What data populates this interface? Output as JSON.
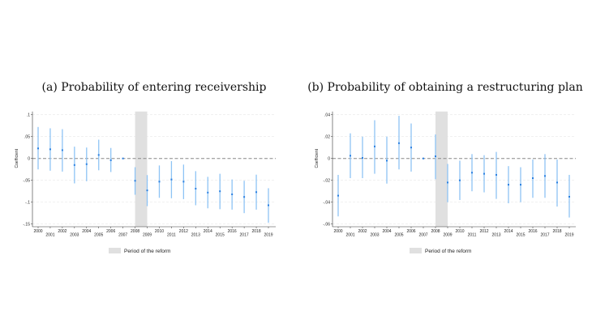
{
  "chart_data": [
    {
      "type": "scatter",
      "subtype": "coefficient-plot-with-confidence-intervals",
      "title": "(a) Probability of entering receivership",
      "ylabel": "Coefficient",
      "xlabel": "",
      "ylim": [
        -0.15,
        0.1
      ],
      "yticks": [
        0.1,
        0.05,
        0,
        -0.05,
        -0.1,
        -0.15
      ],
      "ytick_labels": [
        ".1",
        ".05",
        "0",
        "-.05",
        "-.1",
        "-.15"
      ],
      "grid": true,
      "reference_line": 0,
      "shaded_region": {
        "from": "2008",
        "to": "2009",
        "label": "Period of the reform"
      },
      "legend": {
        "position": "bottom",
        "entries": [
          "Period of the reform"
        ]
      },
      "x": [
        "2000",
        "2001",
        "2002",
        "2003",
        "2004",
        "2005",
        "2006",
        "2007",
        "2008",
        "2009",
        "2010",
        "2011",
        "2012",
        "2013",
        "2014",
        "2015",
        "2016",
        "2017",
        "2018",
        "2019"
      ],
      "coef": [
        0.023,
        0.021,
        0.019,
        -0.015,
        -0.013,
        0.008,
        -0.004,
        0,
        -0.051,
        -0.073,
        -0.053,
        -0.048,
        -0.053,
        -0.069,
        -0.078,
        -0.075,
        -0.082,
        -0.088,
        -0.077,
        -0.107
      ],
      "ci_low": [
        -0.025,
        -0.028,
        -0.03,
        -0.057,
        -0.052,
        -0.027,
        -0.031,
        0,
        -0.083,
        -0.109,
        -0.09,
        -0.091,
        -0.093,
        -0.107,
        -0.114,
        -0.116,
        -0.117,
        -0.125,
        -0.117,
        -0.147
      ],
      "ci_high": [
        0.072,
        0.069,
        0.067,
        0.027,
        0.025,
        0.043,
        0.024,
        0,
        -0.02,
        -0.038,
        -0.016,
        -0.006,
        -0.014,
        -0.029,
        -0.042,
        -0.035,
        -0.048,
        -0.051,
        -0.037,
        -0.068
      ]
    },
    {
      "type": "scatter",
      "subtype": "coefficient-plot-with-confidence-intervals",
      "title": "(b) Probability of obtaining a restructuring plan",
      "ylabel": "Coefficient",
      "xlabel": "",
      "ylim": [
        -0.06,
        0.04
      ],
      "yticks": [
        0.04,
        0.02,
        0,
        -0.02,
        -0.04,
        -0.06
      ],
      "ytick_labels": [
        ".04",
        ".02",
        "0",
        "-.02",
        "-.04",
        "-.06"
      ],
      "grid": true,
      "reference_line": 0,
      "shaded_region": {
        "from": "2008",
        "to": "2009",
        "label": "Period of the reform"
      },
      "legend": {
        "position": "bottom",
        "entries": [
          "Period of the reform"
        ]
      },
      "x": [
        "2000",
        "2001",
        "2002",
        "2003",
        "2004",
        "2005",
        "2006",
        "2007",
        "2008",
        "2009",
        "2010",
        "2011",
        "2012",
        "2013",
        "2014",
        "2015",
        "2016",
        "2017",
        "2018",
        "2019"
      ],
      "coef": [
        -0.034,
        0.0025,
        0.0005,
        0.011,
        -0.002,
        0.014,
        0.01,
        0,
        0.002,
        -0.022,
        -0.02,
        -0.013,
        -0.014,
        -0.015,
        -0.024,
        -0.024,
        -0.018,
        -0.016,
        -0.022,
        -0.035
      ],
      "ci_low": [
        -0.053,
        -0.018,
        -0.018,
        -0.014,
        -0.023,
        -0.01,
        -0.012,
        0,
        -0.019,
        -0.04,
        -0.038,
        -0.03,
        -0.031,
        -0.037,
        -0.041,
        -0.04,
        -0.036,
        -0.036,
        -0.044,
        -0.054
      ],
      "ci_high": [
        -0.015,
        0.023,
        0.02,
        0.035,
        0.02,
        0.039,
        0.032,
        0,
        0.022,
        -0.005,
        -0.002,
        0.004,
        0.003,
        0.006,
        -0.007,
        -0.008,
        -0.001,
        0.004,
        -0.001,
        -0.015
      ]
    }
  ],
  "colors": {
    "ci": "#8ec4f5",
    "point": "#2a7fe0",
    "shade": "#e0e0e0",
    "grid": "#e8e8e8",
    "zero": "#888888"
  }
}
